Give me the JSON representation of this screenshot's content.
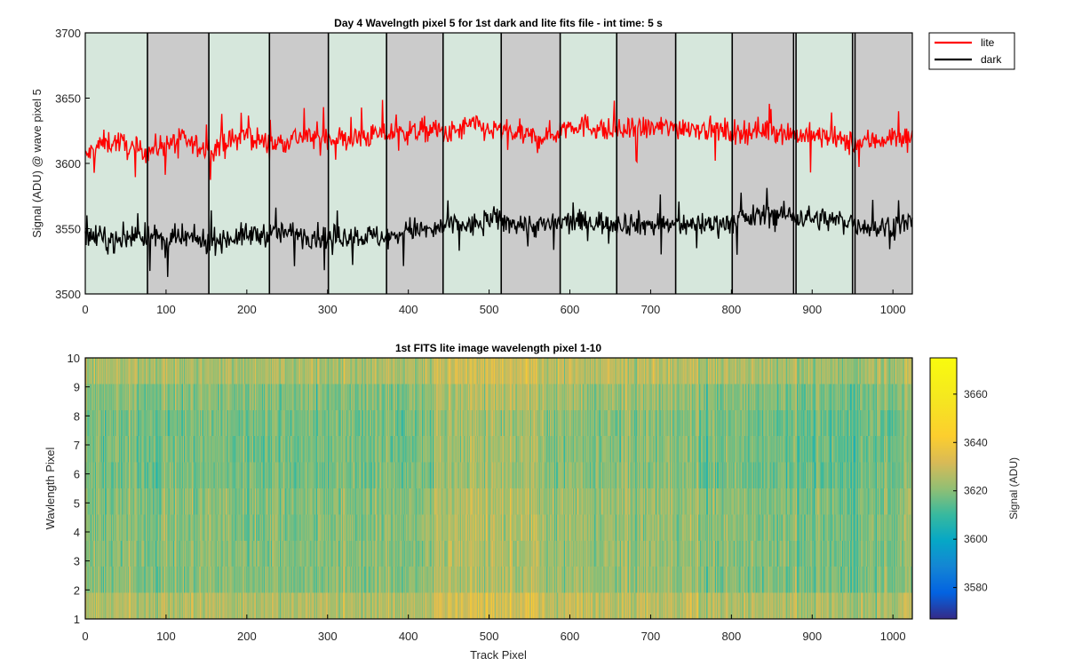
{
  "chart_data": [
    {
      "type": "line",
      "title": "Day 4 Wavelngth pixel 5 for 1st dark and lite fits file - int time: 5 s",
      "xlabel": "",
      "ylabel": "Signal (ADU) @ wave pixel 5",
      "xlim": [
        0,
        1024
      ],
      "ylim": [
        3500,
        3700
      ],
      "xticks": [
        0,
        100,
        200,
        300,
        400,
        500,
        600,
        700,
        800,
        900,
        1000
      ],
      "yticks": [
        3500,
        3550,
        3600,
        3650,
        3700
      ],
      "legend_position": "outside-top-right",
      "series": [
        {
          "name": "lite",
          "color": "#ff0000",
          "segments": [
            [
              0,
              3605
            ],
            [
              20,
              3615
            ],
            [
              40,
              3617
            ],
            [
              60,
              3610
            ],
            [
              80,
              3610
            ],
            [
              100,
              3615
            ],
            [
              120,
              3618
            ],
            [
              150,
              3610
            ],
            [
              180,
              3617
            ],
            [
              200,
              3622
            ],
            [
              230,
              3614
            ],
            [
              260,
              3620
            ],
            [
              300,
              3620
            ],
            [
              330,
              3618
            ],
            [
              360,
              3622
            ],
            [
              400,
              3624
            ],
            [
              430,
              3626
            ],
            [
              450,
              3622
            ],
            [
              480,
              3630
            ],
            [
              500,
              3625
            ],
            [
              520,
              3625
            ],
            [
              550,
              3620
            ],
            [
              580,
              3622
            ],
            [
              600,
              3630
            ],
            [
              630,
              3628
            ],
            [
              650,
              3624
            ],
            [
              700,
              3627
            ],
            [
              750,
              3628
            ],
            [
              800,
              3624
            ],
            [
              850,
              3626
            ],
            [
              880,
              3622
            ],
            [
              920,
              3620
            ],
            [
              950,
              3615
            ],
            [
              980,
              3618
            ],
            [
              1000,
              3620
            ],
            [
              1024,
              3620
            ]
          ],
          "noise_amplitude": 12
        },
        {
          "name": "dark",
          "color": "#000000",
          "segments": [
            [
              0,
              3543
            ],
            [
              20,
              3543
            ],
            [
              40,
              3540
            ],
            [
              60,
              3545
            ],
            [
              80,
              3545
            ],
            [
              100,
              3540
            ],
            [
              120,
              3543
            ],
            [
              150,
              3540
            ],
            [
              200,
              3545
            ],
            [
              250,
              3547
            ],
            [
              300,
              3543
            ],
            [
              330,
              3545
            ],
            [
              380,
              3543
            ],
            [
              400,
              3550
            ],
            [
              430,
              3548
            ],
            [
              450,
              3553
            ],
            [
              480,
              3552
            ],
            [
              500,
              3558
            ],
            [
              520,
              3555
            ],
            [
              560,
              3552
            ],
            [
              600,
              3555
            ],
            [
              650,
              3555
            ],
            [
              700,
              3553
            ],
            [
              750,
              3553
            ],
            [
              800,
              3555
            ],
            [
              850,
              3562
            ],
            [
              900,
              3558
            ],
            [
              950,
              3555
            ],
            [
              980,
              3550
            ],
            [
              1000,
              3553
            ],
            [
              1024,
              3555
            ]
          ],
          "noise_amplitude": 12
        }
      ],
      "background_bands": [
        {
          "from": 0,
          "to": 77,
          "color": "#d6e7dc"
        },
        {
          "from": 77,
          "to": 153,
          "color": "#cbcbcb"
        },
        {
          "from": 153,
          "to": 228,
          "color": "#d6e7dc"
        },
        {
          "from": 228,
          "to": 301,
          "color": "#cbcbcb"
        },
        {
          "from": 301,
          "to": 373,
          "color": "#d6e7dc"
        },
        {
          "from": 373,
          "to": 443,
          "color": "#cbcbcb"
        },
        {
          "from": 443,
          "to": 515,
          "color": "#d6e7dc"
        },
        {
          "from": 515,
          "to": 588,
          "color": "#cbcbcb"
        },
        {
          "from": 588,
          "to": 658,
          "color": "#d6e7dc"
        },
        {
          "from": 658,
          "to": 731,
          "color": "#cbcbcb"
        },
        {
          "from": 731,
          "to": 801,
          "color": "#d6e7dc"
        },
        {
          "from": 801,
          "to": 877,
          "color": "#cbcbcb"
        },
        {
          "from": 877,
          "to": 880,
          "color": "#ffffff"
        },
        {
          "from": 880,
          "to": 950,
          "color": "#d6e7dc"
        },
        {
          "from": 950,
          "to": 953,
          "color": "#ffffff"
        },
        {
          "from": 953,
          "to": 1024,
          "color": "#cbcbcb"
        }
      ],
      "band_boundaries": [
        77,
        153,
        228,
        301,
        373,
        443,
        515,
        588,
        658,
        731,
        801,
        877,
        880,
        950,
        953
      ]
    },
    {
      "type": "heatmap",
      "title": "1st FITS lite image wavelength pixel 1-10",
      "xlabel": "Track Pixel",
      "ylabel": "Wavlength Pixel",
      "xlim": [
        0,
        1024
      ],
      "ylim": [
        1,
        10
      ],
      "xticks": [
        0,
        100,
        200,
        300,
        400,
        500,
        600,
        700,
        800,
        900,
        1000
      ],
      "yticks": [
        1,
        2,
        3,
        4,
        5,
        6,
        7,
        8,
        9,
        10
      ],
      "rows": 10,
      "columns": 1024,
      "value_range": [
        3567,
        3675
      ],
      "typical_mean": 3620,
      "noise_amplitude": 12,
      "colorbar": {
        "label": "Signal (ADU)",
        "ticks": [
          3580,
          3600,
          3620,
          3640,
          3660
        ],
        "range": [
          3567,
          3675
        ],
        "colormap": "parula"
      }
    }
  ]
}
